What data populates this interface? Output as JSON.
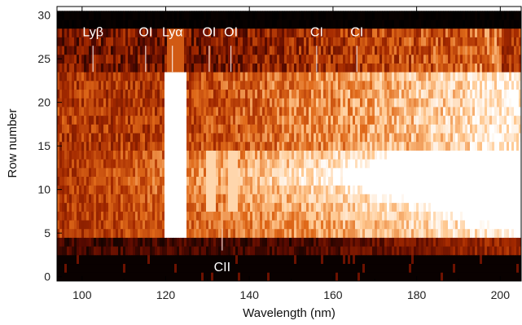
{
  "chart_data": {
    "type": "heatmap",
    "title": "",
    "xlabel": "Wavelength (nm)",
    "ylabel": "Row number",
    "xlim": [
      94,
      205
    ],
    "ylim": [
      -0.5,
      31
    ],
    "x_ticks": [
      100,
      120,
      140,
      160,
      180,
      200
    ],
    "y_ticks": [
      0,
      5,
      10,
      15,
      20,
      25,
      30
    ],
    "colormap": [
      "#000000",
      "#5a0a00",
      "#a52a00",
      "#e06a1a",
      "#ffc890",
      "#ffffff"
    ],
    "rows": [
      {
        "start": 0,
        "end": 3,
        "description_level": 0.03
      },
      {
        "start": 3,
        "end": 5,
        "description_level": 0.18
      },
      {
        "start": 5,
        "end": 15,
        "description_level": 0.7
      },
      {
        "start": 15,
        "end": 24,
        "description_level": 0.6
      },
      {
        "start": 24,
        "end": 29,
        "description_level": 0.35
      },
      {
        "start": 29,
        "end": 31,
        "description_level": 0.02
      }
    ],
    "annotations": [
      {
        "text": "Lyβ",
        "x": 102.6,
        "color": "#ffffff"
      },
      {
        "text": "OI",
        "x": 115.2,
        "color": "#ffffff"
      },
      {
        "text": "Lyα",
        "x": 121.6,
        "color": "#ffffff"
      },
      {
        "text": "OI",
        "x": 130.4,
        "color": "#ffffff"
      },
      {
        "text": "OI",
        "x": 135.6,
        "color": "#ffffff"
      },
      {
        "text": "CI",
        "x": 156.1,
        "color": "#ffffff"
      },
      {
        "text": "CI",
        "x": 165.7,
        "color": "#ffffff"
      },
      {
        "text": "CII",
        "x": 133.5,
        "color": "#ffffff"
      }
    ]
  }
}
